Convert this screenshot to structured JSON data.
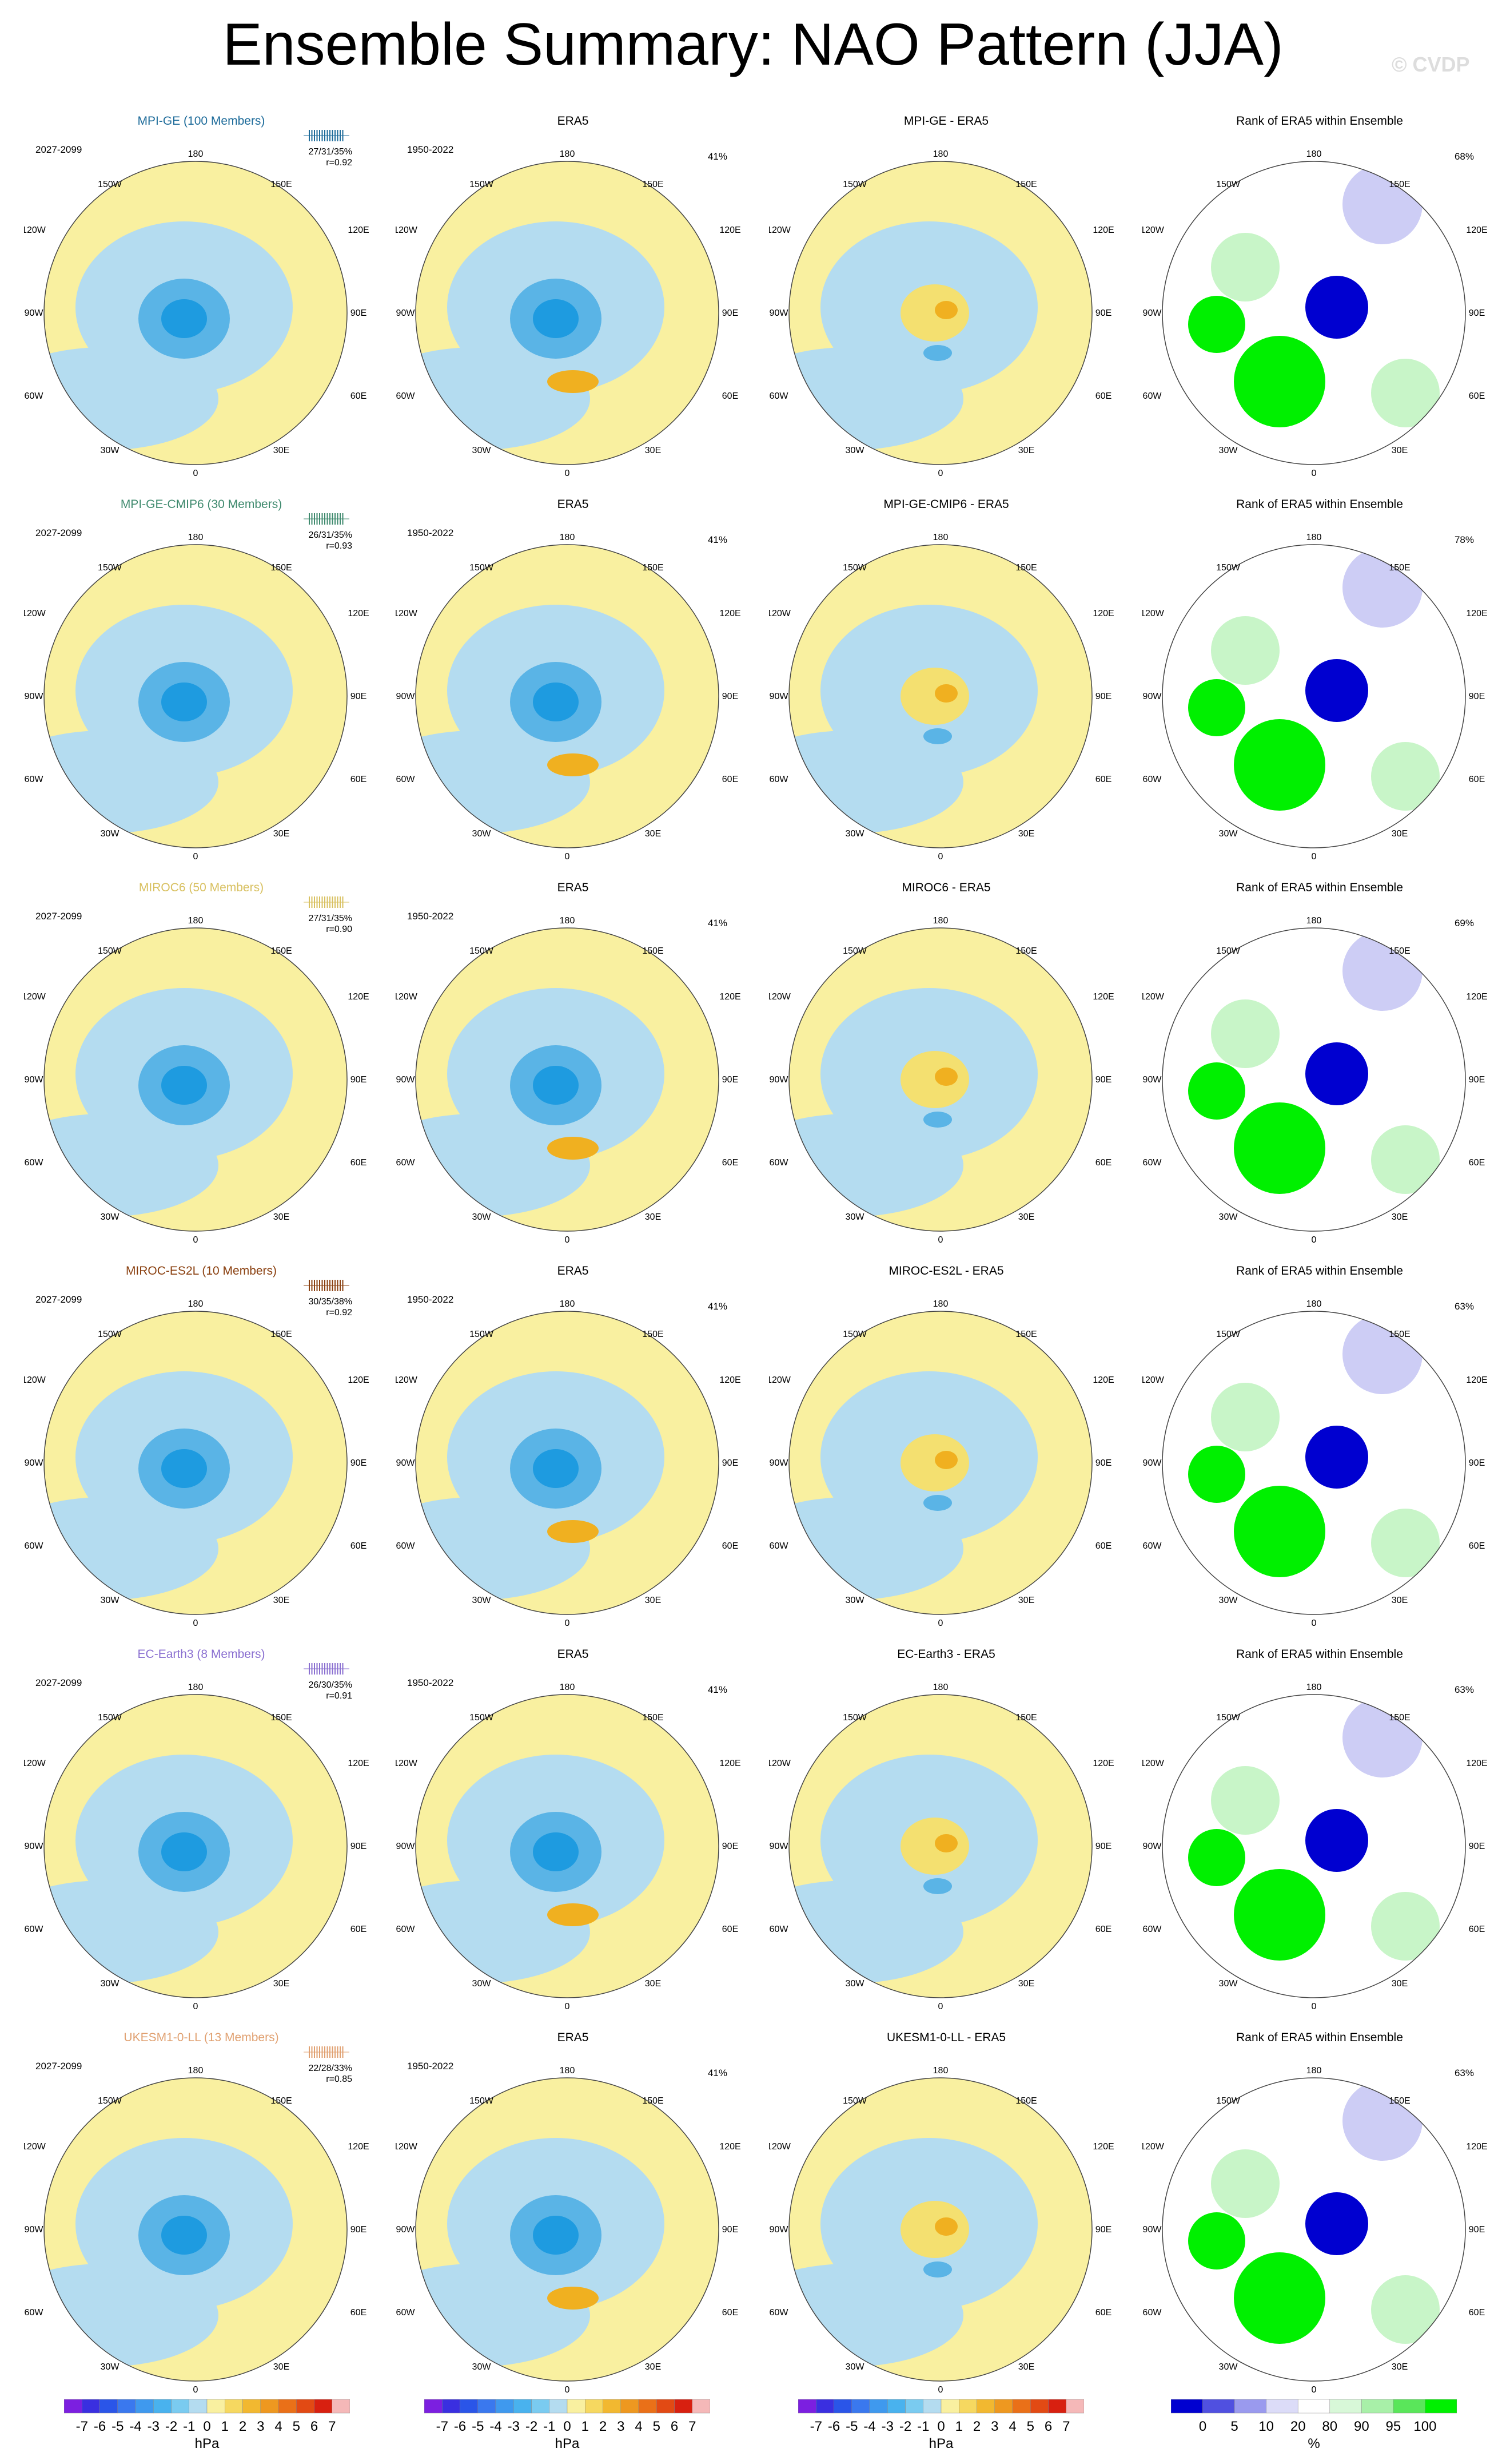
{
  "page": {
    "title": "Ensemble Summary: NAO Pattern (JJA)",
    "watermark": "© CVDP"
  },
  "palette": {
    "blue_pale": "#b4dcf0",
    "blue_mid": "#5ab4e6",
    "blue_strong": "#1e9be0",
    "yellow_pale": "#f9f0a0",
    "orange": "#f0b020",
    "rank_green": "#00f000",
    "rank_green_light": "#c8f5c8",
    "rank_blue": "#0000d0",
    "rank_lavender": "#cdcdf5"
  },
  "map_labels": {
    "lon_top": "180",
    "lon_bottom": "0",
    "lon_150w": "150W",
    "lon_120w": "120W",
    "lon_90w": "90W",
    "lon_60w": "60W",
    "lon_30w": "30W",
    "lon_150e": "150E",
    "lon_120e": "120E",
    "lon_90e": "90E",
    "lon_60e": "60E",
    "lon_30e": "30E"
  },
  "rows": [
    {
      "model": "MPI-GE (100 Members)",
      "model_color": "#1d6b9a",
      "period": "2027-2099",
      "stats": "27/31/35%",
      "r": "r=0.92",
      "era5_title": "ERA5",
      "era5_period": "1950-2022",
      "era5_pct": "41%",
      "diff_title": "MPI-GE - ERA5",
      "rank_title": "Rank of ERA5 within Ensemble",
      "rank_pct": "68%"
    },
    {
      "model": "MPI-GE-CMIP6 (30 Members)",
      "model_color": "#3f8a6e",
      "period": "2027-2099",
      "stats": "26/31/35%",
      "r": "r=0.93",
      "era5_title": "ERA5",
      "era5_period": "1950-2022",
      "era5_pct": "41%",
      "diff_title": "MPI-GE-CMIP6 - ERA5",
      "rank_title": "Rank of ERA5 within Ensemble",
      "rank_pct": "78%"
    },
    {
      "model": "MIROC6 (50 Members)",
      "model_color": "#d8c060",
      "period": "2027-2099",
      "stats": "27/31/35%",
      "r": "r=0.90",
      "era5_title": "ERA5",
      "era5_period": "1950-2022",
      "era5_pct": "41%",
      "diff_title": "MIROC6 - ERA5",
      "rank_title": "Rank of ERA5 within Ensemble",
      "rank_pct": "69%"
    },
    {
      "model": "MIROC-ES2L (10 Members)",
      "model_color": "#8a4010",
      "period": "2027-2099",
      "stats": "30/35/38%",
      "r": "r=0.92",
      "era5_title": "ERA5",
      "era5_period": "1950-2022",
      "era5_pct": "41%",
      "diff_title": "MIROC-ES2L - ERA5",
      "rank_title": "Rank of ERA5 within Ensemble",
      "rank_pct": "63%"
    },
    {
      "model": "EC-Earth3 (8 Members)",
      "model_color": "#8a6fd0",
      "period": "2027-2099",
      "stats": "26/30/35%",
      "r": "r=0.91",
      "era5_title": "ERA5",
      "era5_period": "1950-2022",
      "era5_pct": "41%",
      "diff_title": "EC-Earth3 - ERA5",
      "rank_title": "Rank of ERA5 within Ensemble",
      "rank_pct": "63%"
    },
    {
      "model": "UKESM1-0-LL (13 Members)",
      "model_color": "#e0a070",
      "period": "2027-2099",
      "stats": "22/28/33%",
      "r": "r=0.85",
      "era5_title": "ERA5",
      "era5_period": "1950-2022",
      "era5_pct": "41%",
      "diff_title": "UKESM1-0-LL - ERA5",
      "rank_title": "Rank of ERA5 within Ensemble",
      "rank_pct": "63%"
    }
  ],
  "colorbars": {
    "hpa": {
      "unit": "hPa",
      "ticks": [
        "-7",
        "-6",
        "-5",
        "-4",
        "-3",
        "-2",
        "-1",
        "0",
        "1",
        "2",
        "3",
        "4",
        "5",
        "6",
        "7"
      ],
      "colors": [
        "#7c1fe0",
        "#3a2fe0",
        "#2a55e8",
        "#3a78ee",
        "#3f99ee",
        "#49b2ee",
        "#7acbf0",
        "#b4dcf0",
        "#f9f0a0",
        "#f6d860",
        "#f2b830",
        "#ee9820",
        "#ea7018",
        "#e24a14",
        "#d82010",
        "#f5b8b8"
      ]
    },
    "rank": {
      "unit": "%",
      "ticks": [
        "0",
        "5",
        "10",
        "20",
        "80",
        "90",
        "95",
        "100"
      ],
      "colors": [
        "#0000d0",
        "#5050e0",
        "#9a9aee",
        "#dcdcf8",
        "#ffffff",
        "#d8f8d8",
        "#a8f0a8",
        "#5ae65a",
        "#00f000"
      ]
    }
  }
}
